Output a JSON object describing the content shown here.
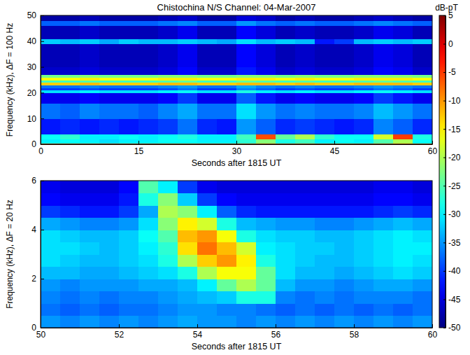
{
  "chart_data": [
    {
      "type": "heatmap",
      "title": "Chistochina N/S Channel: 04-Mar-2007",
      "xlabel": "Seconds after 1815 UT",
      "ylabel": "Frequency (kHz), ΔF = 100 Hz",
      "xlim": [
        0,
        60
      ],
      "xticks": [
        0,
        15,
        30,
        45,
        60
      ],
      "ylim": [
        0,
        50
      ],
      "yticks": [
        0,
        10,
        20,
        30,
        40,
        50
      ],
      "x_edges": [
        0,
        3,
        6,
        9,
        12,
        15,
        18,
        21,
        24,
        27,
        30,
        33,
        36,
        39,
        42,
        45,
        48,
        51,
        54,
        57,
        60
      ],
      "y_edges": [
        0,
        0.5,
        2,
        4,
        10,
        16,
        20,
        21,
        22,
        23,
        24,
        25,
        26,
        27,
        30,
        39,
        41,
        46,
        48,
        50
      ],
      "cells": [
        [
          -8,
          -8,
          -8,
          -8,
          -8,
          -8,
          -8,
          -8,
          -8,
          -8,
          -8,
          -8,
          -8,
          -8,
          -8,
          -8,
          -8,
          -8,
          -8,
          -8
        ],
        [
          -30,
          -29,
          -30,
          -31,
          -30,
          -30,
          -29,
          -29,
          -30,
          -30,
          -27,
          -22,
          -28,
          -26,
          -30,
          -29,
          -30,
          -25,
          -20,
          -29
        ],
        [
          -29,
          -27,
          -30,
          -30,
          -29,
          -30,
          -29,
          -28,
          -30,
          -30,
          -26,
          -6,
          -24,
          -20,
          -27,
          -29,
          -29,
          -18,
          -5,
          -28
        ],
        [
          -42,
          -41,
          -42,
          -41,
          -42,
          -41,
          -40,
          -37,
          -41,
          -42,
          -35,
          -38,
          -41,
          -40,
          -41,
          -42,
          -41,
          -36,
          -38,
          -41
        ],
        [
          -37,
          -38,
          -36,
          -37,
          -37,
          -38,
          -36,
          -34,
          -37,
          -37,
          -31,
          -35,
          -37,
          -36,
          -37,
          -37,
          -36,
          -33,
          -35,
          -37
        ],
        [
          -44,
          -44,
          -43,
          -44,
          -44,
          -44,
          -43,
          -40,
          -44,
          -44,
          -38,
          -42,
          -44,
          -43,
          -44,
          -44,
          -43,
          -40,
          -42,
          -44
        ],
        [
          -31,
          -31,
          -30,
          -31,
          -31,
          -31,
          -30,
          -29,
          -31,
          -31,
          -28,
          -30,
          -31,
          -30,
          -31,
          -31,
          -30,
          -29,
          -30,
          -31
        ],
        [
          -40,
          -40,
          -39,
          -40,
          -40,
          -40,
          -39,
          -37,
          -40,
          -40,
          -36,
          -38,
          -40,
          -39,
          -40,
          -40,
          -39,
          -37,
          -38,
          -40
        ],
        [
          -37,
          -37,
          -36,
          -37,
          -37,
          -37,
          -36,
          -35,
          -37,
          -37,
          -34,
          -36,
          -37,
          -36,
          -37,
          -37,
          -36,
          -35,
          -36,
          -37
        ],
        [
          -13,
          -13,
          -12,
          -13,
          -13,
          -13,
          -12,
          -12,
          -13,
          -13,
          -12,
          -12,
          -13,
          -12,
          -13,
          -13,
          -12,
          -12,
          -12,
          -13
        ],
        [
          -26,
          -26,
          -25,
          -26,
          -26,
          -26,
          -25,
          -24,
          -26,
          -26,
          -24,
          -25,
          -26,
          -25,
          -26,
          -26,
          -25,
          -24,
          -25,
          -26
        ],
        [
          -16,
          -16,
          -15,
          -16,
          -16,
          -16,
          -15,
          -15,
          -16,
          -16,
          -15,
          -15,
          -16,
          -15,
          -16,
          -16,
          -15,
          -15,
          -15,
          -16
        ],
        [
          -23,
          -23,
          -22,
          -23,
          -23,
          -23,
          -22,
          -22,
          -23,
          -23,
          -22,
          -22,
          -23,
          -22,
          -23,
          -23,
          -22,
          -22,
          -22,
          -23
        ],
        [
          -46,
          -46,
          -45,
          -46,
          -46,
          -46,
          -45,
          -43,
          -46,
          -46,
          -42,
          -44,
          -46,
          -45,
          -46,
          -46,
          -45,
          -43,
          -44,
          -46
        ],
        [
          -47,
          -47,
          -46,
          -47,
          -47,
          -47,
          -46,
          -44,
          -47,
          -47,
          -43,
          -45,
          -47,
          -46,
          -47,
          -47,
          -46,
          -44,
          -45,
          -47
        ],
        [
          -32,
          -33,
          -32,
          -34,
          -32,
          -33,
          -33,
          -32,
          -33,
          -34,
          -31,
          -33,
          -32,
          -33,
          -42,
          -40,
          -33,
          -32,
          -33,
          -32
        ],
        [
          -47,
          -47,
          -46,
          -47,
          -47,
          -47,
          -46,
          -44,
          -47,
          -47,
          -43,
          -45,
          -47,
          -46,
          -47,
          -47,
          -46,
          -44,
          -45,
          -47
        ],
        [
          -38,
          -38,
          -37,
          -38,
          -38,
          -38,
          -37,
          -36,
          -38,
          -38,
          -35,
          -37,
          -38,
          -37,
          -38,
          -38,
          -37,
          -36,
          -37,
          -38
        ],
        [
          -48,
          -48,
          -47,
          -48,
          -48,
          -48,
          -47,
          -46,
          -48,
          -48,
          -45,
          -46,
          -48,
          -47,
          -48,
          -48,
          -47,
          -46,
          -47,
          -48
        ]
      ],
      "colorbar": {
        "label": "dB-pT",
        "range": [
          -50,
          5
        ],
        "ticks": [
          5,
          0,
          -5,
          -10,
          -15,
          -20,
          -25,
          -30,
          -35,
          -40,
          -45,
          -50
        ]
      }
    },
    {
      "type": "heatmap",
      "xlabel": "Seconds after 1815 UT",
      "ylabel": "Frequency (kHz), ΔF = 20 Hz",
      "xlim": [
        50,
        60
      ],
      "xticks": [
        50,
        52,
        54,
        56,
        58,
        60
      ],
      "ylim": [
        0,
        6
      ],
      "yticks": [
        0,
        2,
        4,
        6
      ],
      "x_edges": [
        50,
        50.5,
        51,
        51.5,
        52,
        52.5,
        53,
        53.5,
        54,
        54.5,
        55,
        55.5,
        56,
        56.5,
        57,
        57.5,
        58,
        58.5,
        59,
        59.5,
        60
      ],
      "y_edges": [
        0,
        0.5,
        1,
        1.5,
        2,
        2.5,
        3,
        3.5,
        4,
        4.5,
        5,
        5.5,
        6
      ],
      "cells": [
        [
          -35,
          -36,
          -35,
          -36,
          -35,
          -36,
          -35,
          -34,
          -35,
          -35,
          -36,
          -35,
          -36,
          -35,
          -36,
          -35,
          -36,
          -35,
          -36,
          -35
        ],
        [
          -37,
          -38,
          -37,
          -38,
          -37,
          -37,
          -36,
          -35,
          -35,
          -36,
          -36,
          -37,
          -38,
          -37,
          -38,
          -37,
          -38,
          -37,
          -38,
          -37
        ],
        [
          -36,
          -37,
          -36,
          -37,
          -36,
          -36,
          -35,
          -34,
          -33,
          -32,
          -28,
          -28,
          -36,
          -37,
          -36,
          -37,
          -36,
          -36,
          -36,
          -37
        ],
        [
          -35,
          -36,
          -35,
          -35,
          -35,
          -34,
          -34,
          -33,
          -30,
          -24,
          -20,
          -24,
          -33,
          -35,
          -35,
          -36,
          -35,
          -34,
          -34,
          -35
        ],
        [
          -33,
          -33,
          -34,
          -34,
          -33,
          -32,
          -31,
          -28,
          -20,
          -16,
          -16,
          -24,
          -31,
          -33,
          -33,
          -34,
          -33,
          -32,
          -31,
          -32
        ],
        [
          -31,
          -32,
          -33,
          -33,
          -32,
          -31,
          -28,
          -20,
          -13,
          -10,
          -15,
          -28,
          -31,
          -32,
          -33,
          -33,
          -32,
          -31,
          -30,
          -31
        ],
        [
          -31,
          -31,
          -32,
          -33,
          -32,
          -30,
          -27,
          -14,
          -8,
          -12,
          -18,
          -30,
          -31,
          -32,
          -32,
          -33,
          -32,
          -31,
          -30,
          -30
        ],
        [
          -31,
          -32,
          -33,
          -33,
          -32,
          -29,
          -25,
          -12,
          -10,
          -16,
          -28,
          -31,
          -32,
          -32,
          -33,
          -33,
          -32,
          -31,
          -30,
          -31
        ],
        [
          -34,
          -35,
          -36,
          -36,
          -35,
          -31,
          -22,
          -15,
          -18,
          -28,
          -33,
          -34,
          -35,
          -35,
          -36,
          -36,
          -35,
          -34,
          -33,
          -34
        ],
        [
          -40,
          -41,
          -42,
          -42,
          -40,
          -34,
          -20,
          -22,
          -30,
          -38,
          -41,
          -42,
          -42,
          -42,
          -42,
          -42,
          -42,
          -41,
          -40,
          -41
        ],
        [
          -43,
          -44,
          -44,
          -44,
          -42,
          -28,
          -22,
          -32,
          -40,
          -43,
          -44,
          -44,
          -44,
          -44,
          -44,
          -44,
          -44,
          -43,
          -43,
          -44
        ],
        [
          -44,
          -45,
          -45,
          -45,
          -43,
          -25,
          -30,
          -40,
          -44,
          -45,
          -45,
          -45,
          -45,
          -45,
          -45,
          -45,
          -45,
          -44,
          -44,
          -45
        ]
      ]
    }
  ]
}
